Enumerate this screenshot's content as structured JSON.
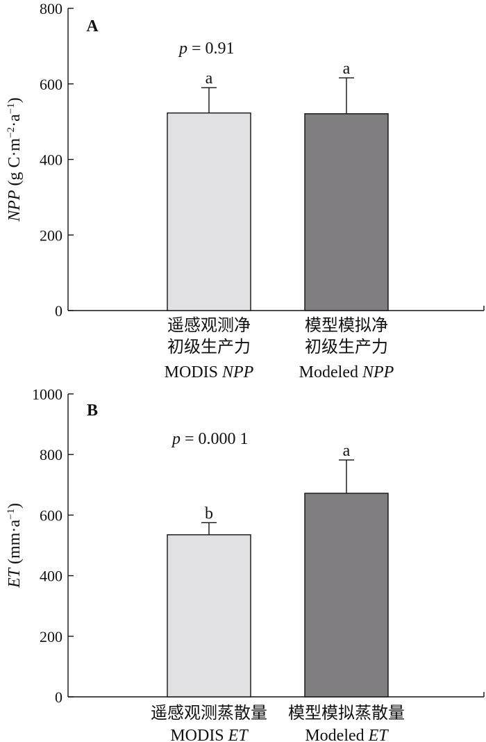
{
  "chart_data": [
    {
      "type": "bar",
      "panel_label": "A",
      "ylabel": {
        "italic": "NPP",
        "rest": " (g C·m",
        "sup1": "−2",
        "mid": "·a",
        "sup2": "−1",
        "end": ")"
      },
      "ylim": [
        0,
        800
      ],
      "yticks": [
        0,
        200,
        400,
        600,
        800
      ],
      "p_value": {
        "p": "p",
        "rest": " = 0.91"
      },
      "categories": [
        {
          "lines": [
            "遥感观测净",
            "初级生产力"
          ],
          "last": {
            "plain": "MODIS ",
            "italic": "NPP"
          }
        },
        {
          "lines": [
            "模型模拟净",
            "初级生产力"
          ],
          "last": {
            "plain": "Modeled ",
            "italic": "NPP"
          }
        }
      ],
      "values": [
        523,
        521
      ],
      "errors": [
        67,
        95
      ],
      "significance": [
        "a",
        "a"
      ],
      "colors": [
        "#e1e1e3",
        "#807e80"
      ]
    },
    {
      "type": "bar",
      "panel_label": "B",
      "ylabel": {
        "italic": "ET",
        "rest": " (mm·a",
        "sup1": "−1",
        "mid": "",
        "sup2": "",
        "end": ")"
      },
      "ylim": [
        0,
        1000
      ],
      "yticks": [
        0,
        200,
        400,
        600,
        800,
        1000
      ],
      "p_value": {
        "p": "p",
        "rest": " = 0.000 1"
      },
      "categories": [
        {
          "lines": [
            "遥感观测蒸散量"
          ],
          "last": {
            "plain": "MODIS ",
            "italic": "ET"
          }
        },
        {
          "lines": [
            "模型模拟蒸散量"
          ],
          "last": {
            "plain": "Modeled ",
            "italic": "ET"
          }
        }
      ],
      "values": [
        535,
        672
      ],
      "errors": [
        40,
        110
      ],
      "significance": [
        "b",
        "a"
      ],
      "colors": [
        "#e1e1e3",
        "#807e80"
      ]
    }
  ]
}
